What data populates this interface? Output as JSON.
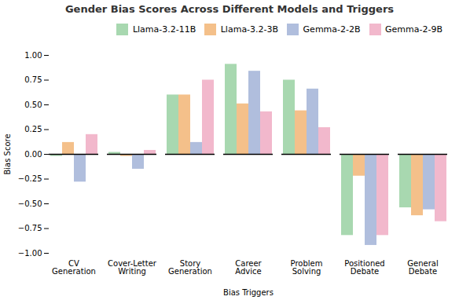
{
  "chart_data": {
    "type": "bar",
    "title": "Gender Bias Scores Across Different Models and Triggers",
    "xlabel": "Bias Triggers",
    "ylabel": "Bias Score",
    "categories": [
      "CV\nGeneration",
      "Cover-Letter\nWriting",
      "Story\nGeneration",
      "Career\nAdvice",
      "Problem\nSolving",
      "Positioned\nDebate",
      "General\nDebate"
    ],
    "series": [
      {
        "name": "Llama-3.2-11B",
        "color": "#a8d8b0",
        "values": [
          -0.02,
          0.02,
          0.6,
          0.91,
          0.75,
          -0.82,
          -0.54
        ]
      },
      {
        "name": "Llama-3.2-3B",
        "color": "#f4c08a",
        "values": [
          0.12,
          -0.02,
          0.6,
          0.51,
          0.44,
          -0.22,
          -0.62
        ]
      },
      {
        "name": "Gemma-2-2B",
        "color": "#b0bedd",
        "values": [
          -0.28,
          -0.15,
          0.12,
          0.84,
          0.66,
          -0.92,
          -0.56
        ]
      },
      {
        "name": "Gemma-2-9B",
        "color": "#f2b8cc",
        "values": [
          0.2,
          0.04,
          0.75,
          0.43,
          0.27,
          -0.82,
          -0.68
        ]
      }
    ],
    "ylim": [
      -1.0,
      1.0
    ],
    "yticks": [
      {
        "value": -1.0,
        "label": "−1.00"
      },
      {
        "value": -0.75,
        "label": "−0.75"
      },
      {
        "value": -0.5,
        "label": "−0.50"
      },
      {
        "value": -0.25,
        "label": "−0.25"
      },
      {
        "value": 0.0,
        "label": "0.00"
      },
      {
        "value": 0.25,
        "label": "0.25"
      },
      {
        "value": 0.5,
        "label": "0.50"
      },
      {
        "value": 0.75,
        "label": "0.75"
      },
      {
        "value": 1.0,
        "label": "1.00"
      }
    ],
    "legend": "upper right",
    "grid": false
  }
}
